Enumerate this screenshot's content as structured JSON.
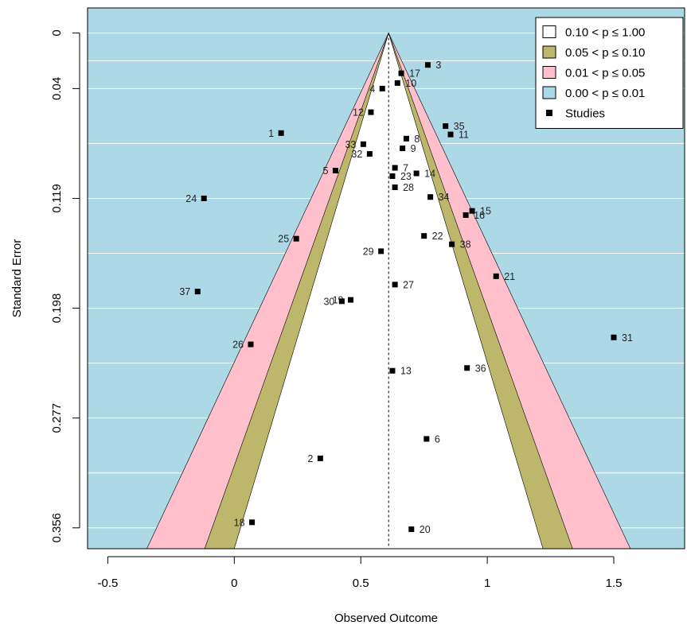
{
  "chart_data": {
    "type": "scatter",
    "xlabel": "Observed Outcome",
    "ylabel": "Standard Error",
    "xlim": [
      -0.58,
      1.78
    ],
    "ylim": [
      0.371,
      -0.018
    ],
    "x_ticks": [
      "-0.5",
      "0",
      "0.5",
      "1",
      "1.5"
    ],
    "x_tick_values": [
      -0.5,
      0,
      0.5,
      1,
      1.5
    ],
    "y_ticks": [
      "0",
      "0.04",
      "0.119",
      "0.198",
      "0.277",
      "0.356"
    ],
    "y_tick_values": [
      0,
      0.04,
      0.119,
      0.198,
      0.277,
      0.356
    ],
    "grid": true,
    "estimate": 0.61,
    "regions": [
      {
        "label": "0.10 < p ≤ 1.00",
        "z": 1.645,
        "color": "#ffffff"
      },
      {
        "label": "0.05 < p ≤ 0.10",
        "z": 1.96,
        "color": "#bdb76b"
      },
      {
        "label": "0.01 < p ≤ 0.05",
        "z": 2.576,
        "color": "#ffc0cb"
      },
      {
        "label": "0.00 < p ≤ 0.01",
        "z": null,
        "color": "#add8e6"
      }
    ],
    "legend": {
      "position": "top-right",
      "studies_label": "Studies"
    },
    "studies": [
      {
        "label": "1",
        "x": 0.185,
        "se": 0.072
      },
      {
        "label": "2",
        "x": 0.34,
        "se": 0.306
      },
      {
        "label": "3",
        "x": 0.765,
        "se": 0.023
      },
      {
        "label": "4",
        "x": 0.585,
        "se": 0.04
      },
      {
        "label": "5",
        "x": 0.4,
        "se": 0.099
      },
      {
        "label": "6",
        "x": 0.76,
        "se": 0.292
      },
      {
        "label": "7",
        "x": 0.635,
        "se": 0.097
      },
      {
        "label": "8",
        "x": 0.68,
        "se": 0.076
      },
      {
        "label": "9",
        "x": 0.665,
        "se": 0.083
      },
      {
        "label": "10",
        "x": 0.645,
        "se": 0.036
      },
      {
        "label": "11",
        "x": 0.855,
        "se": 0.073
      },
      {
        "label": "12",
        "x": 0.54,
        "se": 0.057
      },
      {
        "label": "13",
        "x": 0.625,
        "se": 0.243
      },
      {
        "label": "14",
        "x": 0.72,
        "se": 0.101
      },
      {
        "label": "15",
        "x": 0.94,
        "se": 0.128
      },
      {
        "label": "16",
        "x": 0.915,
        "se": 0.131
      },
      {
        "label": "17",
        "x": 0.66,
        "se": 0.029
      },
      {
        "label": "18",
        "x": 0.07,
        "se": 0.352
      },
      {
        "label": "19",
        "x": 0.46,
        "se": 0.192
      },
      {
        "label": "20",
        "x": 0.7,
        "se": 0.357
      },
      {
        "label": "21",
        "x": 1.035,
        "se": 0.175
      },
      {
        "label": "22",
        "x": 0.75,
        "se": 0.146
      },
      {
        "label": "23",
        "x": 0.625,
        "se": 0.103
      },
      {
        "label": "24",
        "x": -0.12,
        "se": 0.119
      },
      {
        "label": "25",
        "x": 0.245,
        "se": 0.148
      },
      {
        "label": "26",
        "x": 0.065,
        "se": 0.224
      },
      {
        "label": "27",
        "x": 0.635,
        "se": 0.181
      },
      {
        "label": "28",
        "x": 0.635,
        "se": 0.111
      },
      {
        "label": "29",
        "x": 0.58,
        "se": 0.157
      },
      {
        "label": "30",
        "x": 0.425,
        "se": 0.193
      },
      {
        "label": "31",
        "x": 1.5,
        "se": 0.219
      },
      {
        "label": "32",
        "x": 0.535,
        "se": 0.087
      },
      {
        "label": "33",
        "x": 0.51,
        "se": 0.08
      },
      {
        "label": "34",
        "x": 0.775,
        "se": 0.118
      },
      {
        "label": "35",
        "x": 0.835,
        "se": 0.067
      },
      {
        "label": "36",
        "x": 0.92,
        "se": 0.241
      },
      {
        "label": "37",
        "x": -0.145,
        "se": 0.186
      },
      {
        "label": "38",
        "x": 0.86,
        "se": 0.152
      }
    ]
  }
}
